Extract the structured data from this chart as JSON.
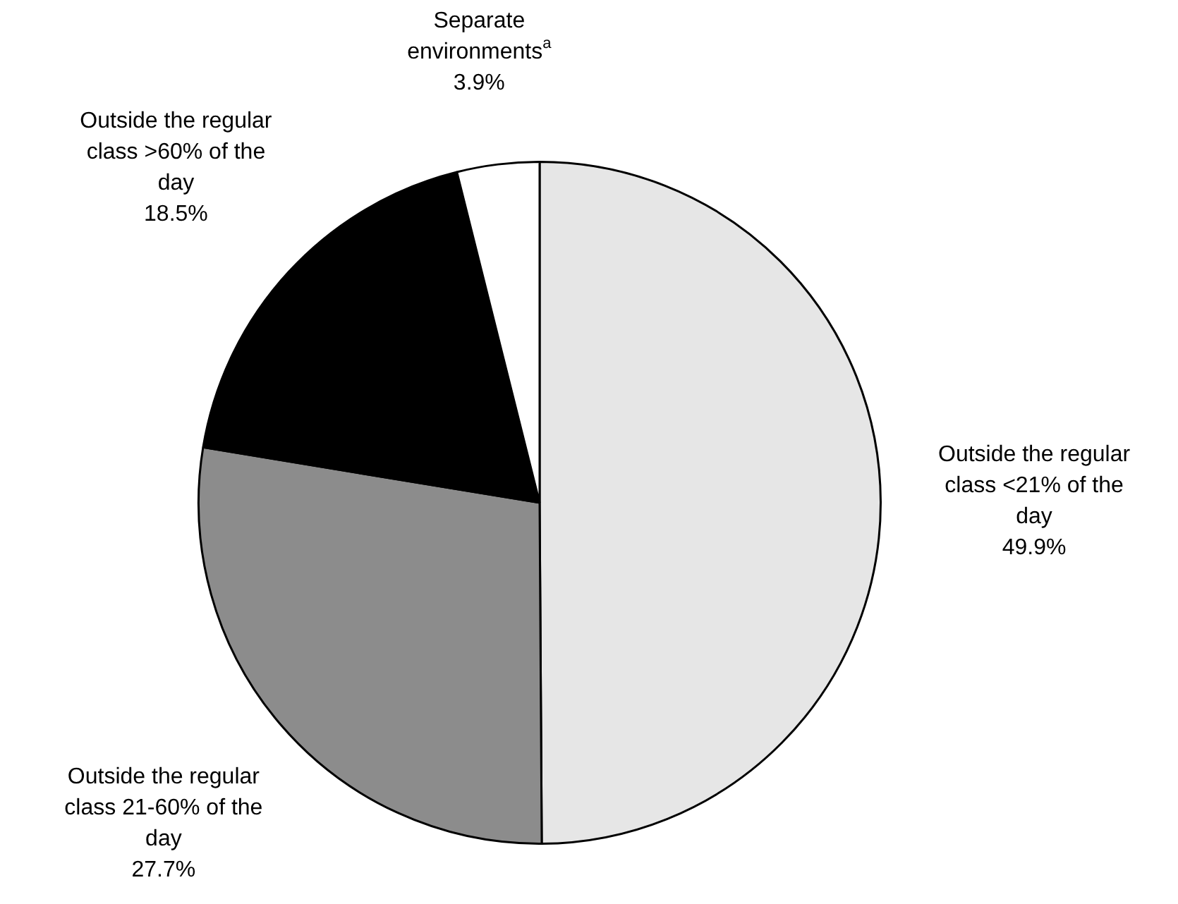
{
  "chart_data": {
    "type": "pie",
    "categories": [
      "Outside the regular class <21% of the day",
      "Outside the regular class 21-60% of the day",
      "Outside the regular class >60% of the day",
      "Separate environments$^{a}$"
    ],
    "values": [
      49.9,
      27.7,
      18.5,
      3.9
    ],
    "colors": [
      "#e6e6e6",
      "#8c8c8c",
      "#000000",
      "#ffffff"
    ],
    "value_labels": [
      "49.9%",
      "27.7%",
      "18.5%",
      "3.9%"
    ],
    "legend": false
  }
}
